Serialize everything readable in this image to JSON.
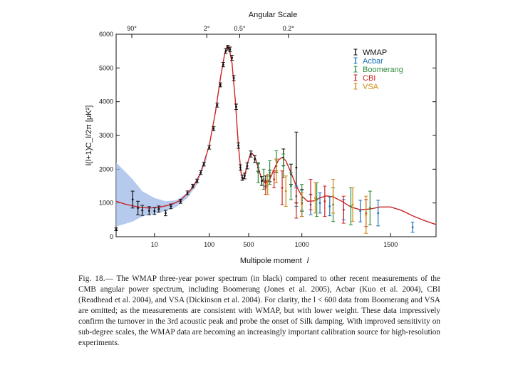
{
  "chart_data": {
    "type": "scatter",
    "title": "Angular Scale",
    "top_axis_ticks": [
      "90°",
      "2°",
      "0.5°",
      "0.2°"
    ],
    "top_axis_tick_ell": [
      2,
      90,
      360,
      900
    ],
    "xlabel": "Multipole moment",
    "xlabel_symbol": "l",
    "ylabel": "l(l+1)C_l/2π [μK²]",
    "ylim": [
      0,
      6000
    ],
    "y_ticks": [
      0,
      1000,
      2000,
      3000,
      4000,
      5000,
      6000
    ],
    "x_scale": "log below l=400, linear above (l^2 scaled)",
    "x_ticks": [
      10,
      100,
      500,
      1000,
      1500
    ],
    "xlim": [
      2,
      1700
    ],
    "legend": {
      "position": "top-right",
      "entries": [
        {
          "name": "WMAP",
          "color": "#111111"
        },
        {
          "name": "Acbar",
          "color": "#1d6fb8"
        },
        {
          "name": "Boomerang",
          "color": "#2e8b3a"
        },
        {
          "name": "CBI",
          "color": "#cc2222"
        },
        {
          "name": "VSA",
          "color": "#d08a10"
        }
      ]
    },
    "model_curve": {
      "name": "best-fit model",
      "color": "#cc2222",
      "points": [
        [
          2,
          1050
        ],
        [
          3,
          960
        ],
        [
          5,
          880
        ],
        [
          8,
          850
        ],
        [
          12,
          870
        ],
        [
          20,
          950
        ],
        [
          30,
          1080
        ],
        [
          50,
          1450
        ],
        [
          70,
          1900
        ],
        [
          100,
          2700
        ],
        [
          130,
          3700
        ],
        [
          160,
          4700
        ],
        [
          190,
          5400
        ],
        [
          210,
          5650
        ],
        [
          230,
          5600
        ],
        [
          260,
          5150
        ],
        [
          300,
          4000
        ],
        [
          340,
          2700
        ],
        [
          380,
          1900
        ],
        [
          410,
          1700
        ],
        [
          440,
          1780
        ],
        [
          480,
          2150
        ],
        [
          520,
          2420
        ],
        [
          545,
          2470
        ],
        [
          580,
          2380
        ],
        [
          620,
          2050
        ],
        [
          660,
          1700
        ],
        [
          700,
          1580
        ],
        [
          740,
          1700
        ],
        [
          780,
          2000
        ],
        [
          820,
          2280
        ],
        [
          850,
          2350
        ],
        [
          880,
          2250
        ],
        [
          920,
          1900
        ],
        [
          960,
          1500
        ],
        [
          1000,
          1200
        ],
        [
          1040,
          1050
        ],
        [
          1080,
          1060
        ],
        [
          1120,
          1150
        ],
        [
          1160,
          1210
        ],
        [
          1200,
          1180
        ],
        [
          1250,
          1050
        ],
        [
          1300,
          880
        ],
        [
          1350,
          800
        ],
        [
          1400,
          820
        ],
        [
          1450,
          880
        ],
        [
          1500,
          880
        ],
        [
          1550,
          780
        ],
        [
          1600,
          620
        ],
        [
          1650,
          480
        ],
        [
          1700,
          360
        ]
      ]
    },
    "cosmic_variance_band": {
      "color": "#9db8e8",
      "upper": [
        [
          2,
          2200
        ],
        [
          4,
          1700
        ],
        [
          6,
          1350
        ],
        [
          10,
          1150
        ],
        [
          16,
          1050
        ],
        [
          25,
          1080
        ],
        [
          40,
          1300
        ],
        [
          60,
          1700
        ],
        [
          90,
          2450
        ]
      ],
      "lower": [
        [
          2,
          300
        ],
        [
          4,
          450
        ],
        [
          6,
          600
        ],
        [
          10,
          680
        ],
        [
          16,
          760
        ],
        [
          25,
          880
        ],
        [
          40,
          1150
        ],
        [
          60,
          1550
        ],
        [
          90,
          2300
        ]
      ]
    },
    "series": [
      {
        "name": "WMAP",
        "color": "#111111",
        "points": [
          [
            2,
            220,
            40
          ],
          [
            4,
            1100,
            250
          ],
          [
            5,
            850,
            200
          ],
          [
            6,
            780,
            150
          ],
          [
            8,
            770,
            120
          ],
          [
            10,
            760,
            100
          ],
          [
            12,
            820,
            90
          ],
          [
            16,
            700,
            80
          ],
          [
            20,
            900,
            70
          ],
          [
            30,
            1050,
            60
          ],
          [
            40,
            1300,
            55
          ],
          [
            50,
            1500,
            55
          ],
          [
            60,
            1650,
            55
          ],
          [
            70,
            1900,
            55
          ],
          [
            80,
            2150,
            55
          ],
          [
            100,
            2650,
            55
          ],
          [
            120,
            3200,
            60
          ],
          [
            140,
            3900,
            60
          ],
          [
            160,
            4500,
            60
          ],
          [
            180,
            5100,
            65
          ],
          [
            200,
            5500,
            70
          ],
          [
            220,
            5600,
            70
          ],
          [
            240,
            5550,
            70
          ],
          [
            260,
            5300,
            75
          ],
          [
            280,
            4700,
            75
          ],
          [
            310,
            3850,
            80
          ],
          [
            340,
            2700,
            80
          ],
          [
            370,
            2050,
            80
          ],
          [
            400,
            1750,
            80
          ],
          [
            440,
            1800,
            85
          ],
          [
            480,
            2100,
            90
          ],
          [
            530,
            2450,
            90
          ],
          [
            580,
            2300,
            100
          ],
          [
            620,
            2050,
            110
          ],
          [
            660,
            1650,
            130
          ],
          [
            700,
            1650,
            150
          ],
          [
            740,
            1800,
            170
          ],
          [
            800,
            2100,
            200
          ],
          [
            860,
            2350,
            250
          ],
          [
            920,
            1850,
            300
          ],
          [
            960,
            2050,
            1050
          ],
          [
            1000,
            1000,
            400
          ]
        ]
      },
      {
        "name": "Acbar",
        "color": "#1d6fb8",
        "points": [
          [
            960,
            1200,
            300
          ],
          [
            1000,
            1080,
            300
          ],
          [
            1060,
            950,
            300
          ],
          [
            1120,
            1000,
            300
          ],
          [
            1180,
            900,
            280
          ],
          [
            1260,
            800,
            300
          ],
          [
            1350,
            760,
            320
          ],
          [
            1440,
            700,
            380
          ],
          [
            1600,
            280,
            150
          ]
        ]
      },
      {
        "name": "Boomerang",
        "color": "#2e8b3a",
        "points": [
          [
            620,
            1900,
            300
          ],
          [
            680,
            1700,
            300
          ],
          [
            740,
            1900,
            350
          ],
          [
            800,
            2250,
            300
          ],
          [
            860,
            2100,
            350
          ],
          [
            920,
            1500,
            400
          ],
          [
            1000,
            1150,
            400
          ],
          [
            1100,
            1100,
            500
          ],
          [
            1200,
            950,
            500
          ],
          [
            1300,
            900,
            550
          ],
          [
            1400,
            850,
            500
          ]
        ]
      },
      {
        "name": "CBI",
        "color": "#cc2222",
        "points": [
          [
            700,
            1450,
            200
          ],
          [
            780,
            1700,
            250
          ],
          [
            850,
            1450,
            500
          ],
          [
            960,
            1000,
            450
          ],
          [
            1060,
            1250,
            450
          ],
          [
            1150,
            1050,
            450
          ],
          [
            1260,
            800,
            400
          ],
          [
            1380,
            700,
            400
          ]
        ]
      },
      {
        "name": "VSA",
        "color": "#d08a10",
        "points": [
          [
            720,
            1550,
            300
          ],
          [
            800,
            1950,
            350
          ],
          [
            880,
            1350,
            450
          ],
          [
            1000,
            950,
            350
          ],
          [
            1090,
            1150,
            450
          ],
          [
            1200,
            1200,
            500
          ],
          [
            1310,
            950,
            500
          ],
          [
            1380,
            650,
            550
          ]
        ]
      }
    ]
  },
  "caption": {
    "label": "Fig. 18.—",
    "text": "The WMAP three-year power spectrum (in black) compared to other recent measurements of the CMB angular power spectrum, including Boomerang (Jones et al. 2005), Acbar (Kuo et al. 2004), CBI (Readhead et al. 2004), and VSA (Dickinson et al. 2004). For clarity, the l < 600 data from Boomerang and VSA are omitted; as the measurements are consistent with WMAP, but with lower weight. These data impressively confirm the turnover in the 3rd acoustic peak and probe the onset of Silk damping. With improved sensitivity on sub-degree scales, the WMAP data are becoming an increasingly important calibration source for high-resolution experiments."
  }
}
